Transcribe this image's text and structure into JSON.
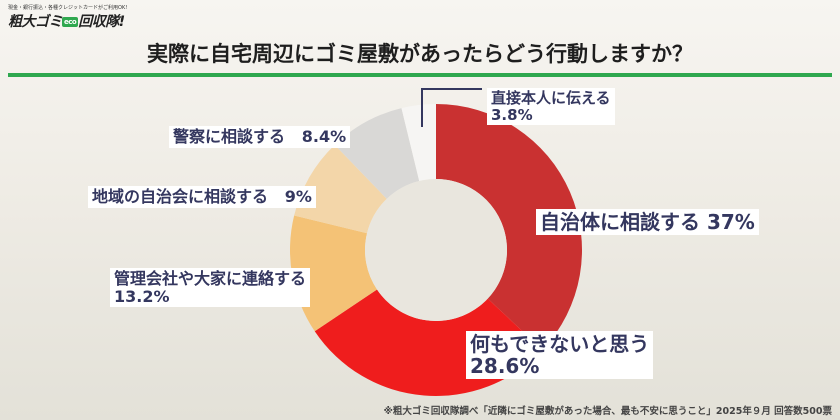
{
  "logo": {
    "tagline": "現金・銀行振込・各種クレジットカードがご利用OK!",
    "name_a": "粗大ゴミ",
    "eco": "eco",
    "name_b": "回収隊!"
  },
  "title": "実際に自宅周辺にゴミ屋敷があったらどう行動しますか？",
  "footnote": "※粗大ゴミ回収隊調べ「近隣にゴミ屋敷があった場合、最も不安に思うこと」2025年９月 回答数500票",
  "chart_data": {
    "type": "pie",
    "donut": true,
    "start": "top, clockwise",
    "slices": [
      {
        "label": "自治体に相談する",
        "value": 37,
        "display": "37%",
        "color": "#c93131"
      },
      {
        "label": "何もできないと思う",
        "value": 28.6,
        "display": "28.6%",
        "color": "#ef1d1d"
      },
      {
        "label": "管理会社や大家に連絡する",
        "value": 13.2,
        "display": "13.2%",
        "color": "#f4c276"
      },
      {
        "label": "地域の自治会に相談する",
        "value": 9,
        "display": "9%",
        "color": "#f3d6a9"
      },
      {
        "label": "警察に相談する",
        "value": 8.4,
        "display": "8.4%",
        "color": "#d9d8d6"
      },
      {
        "label": "直接本人に伝える",
        "value": 3.8,
        "display": "3.8%",
        "color": "#f6f5f3"
      }
    ]
  }
}
